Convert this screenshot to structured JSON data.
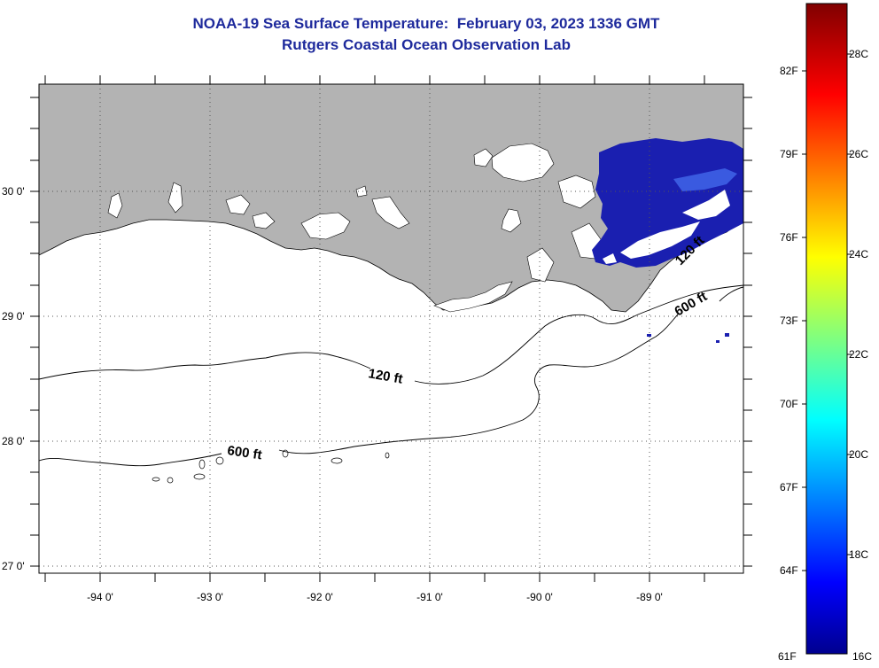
{
  "title": {
    "line1": "NOAA-19 Sea Surface Temperature:  February 03, 2023 1336 GMT",
    "line2": "Rutgers Coastal Ocean Observation Lab"
  },
  "map": {
    "lat_labels": [
      "30 0'",
      "29 0'",
      "28 0'",
      "27 0'"
    ],
    "lon_labels": [
      "-94 0'",
      "-93 0'",
      "-92 0'",
      "-91 0'",
      "-90 0'",
      "-89 0'"
    ],
    "contours": {
      "inner_label": "120 ft",
      "outer_label": "600 ft",
      "inner_label_east": "120 ft",
      "outer_label_east": "600 ft"
    },
    "colors": {
      "land": "#b3b3b3",
      "water": "#ffffff",
      "cold_sst": "#1a1fb0"
    }
  },
  "colorbar": {
    "fahrenheit_labels": [
      "82F",
      "79F",
      "76F",
      "73F",
      "70F",
      "67F",
      "64F",
      "61F"
    ],
    "celsius_labels": [
      "28C",
      "26C",
      "24C",
      "22C",
      "20C",
      "18C",
      "16C"
    ],
    "colormap": "jet"
  }
}
